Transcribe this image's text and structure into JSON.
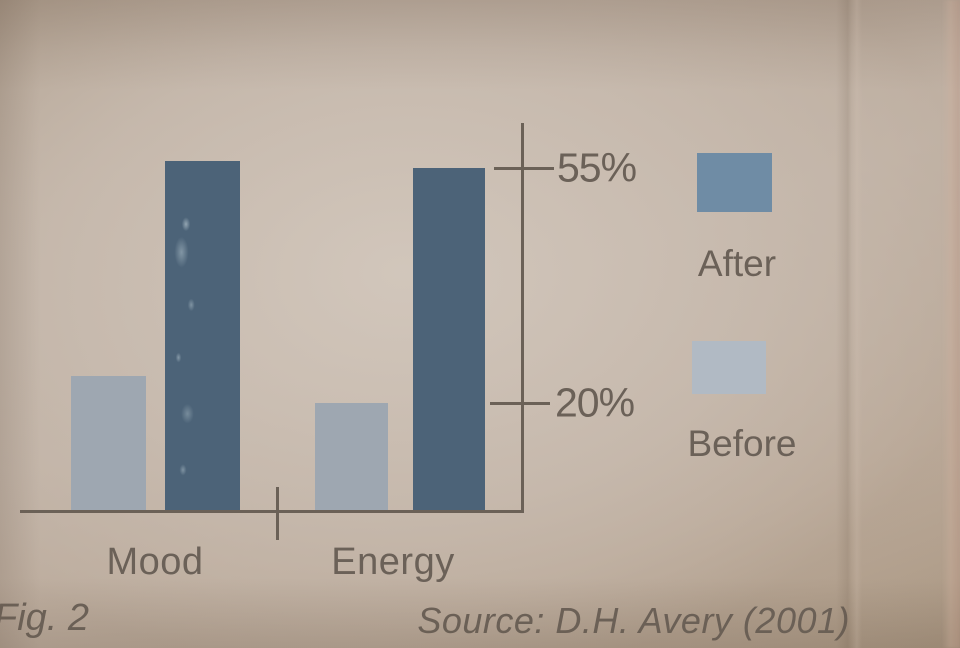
{
  "figure": {
    "caption": "Fig. 2",
    "source": "Source: D.H. Avery (2001)"
  },
  "chart_data": {
    "type": "bar",
    "categories": [
      "Mood",
      "Energy"
    ],
    "series": [
      {
        "name": "Before",
        "values": [
          24,
          20
        ]
      },
      {
        "name": "After",
        "values": [
          56,
          55
        ]
      }
    ],
    "yticks": [
      {
        "label": "55%",
        "value": 55
      },
      {
        "label": "20%",
        "value": 20
      }
    ],
    "axis": {
      "y_axis_side": "right-of-plot",
      "grid": false,
      "ylim_shown": [
        20,
        55
      ]
    },
    "legend": {
      "position": "right",
      "order": [
        "After",
        "Before"
      ]
    },
    "colors": {
      "after_bar": "#4c6378",
      "before_bar": "#9ea7b1",
      "after_swatch": "#6f8ca5",
      "before_swatch": "#b1bac4",
      "axis": "#6b6157",
      "text": "#6b6158"
    },
    "title": "",
    "xlabel": "",
    "ylabel": ""
  }
}
